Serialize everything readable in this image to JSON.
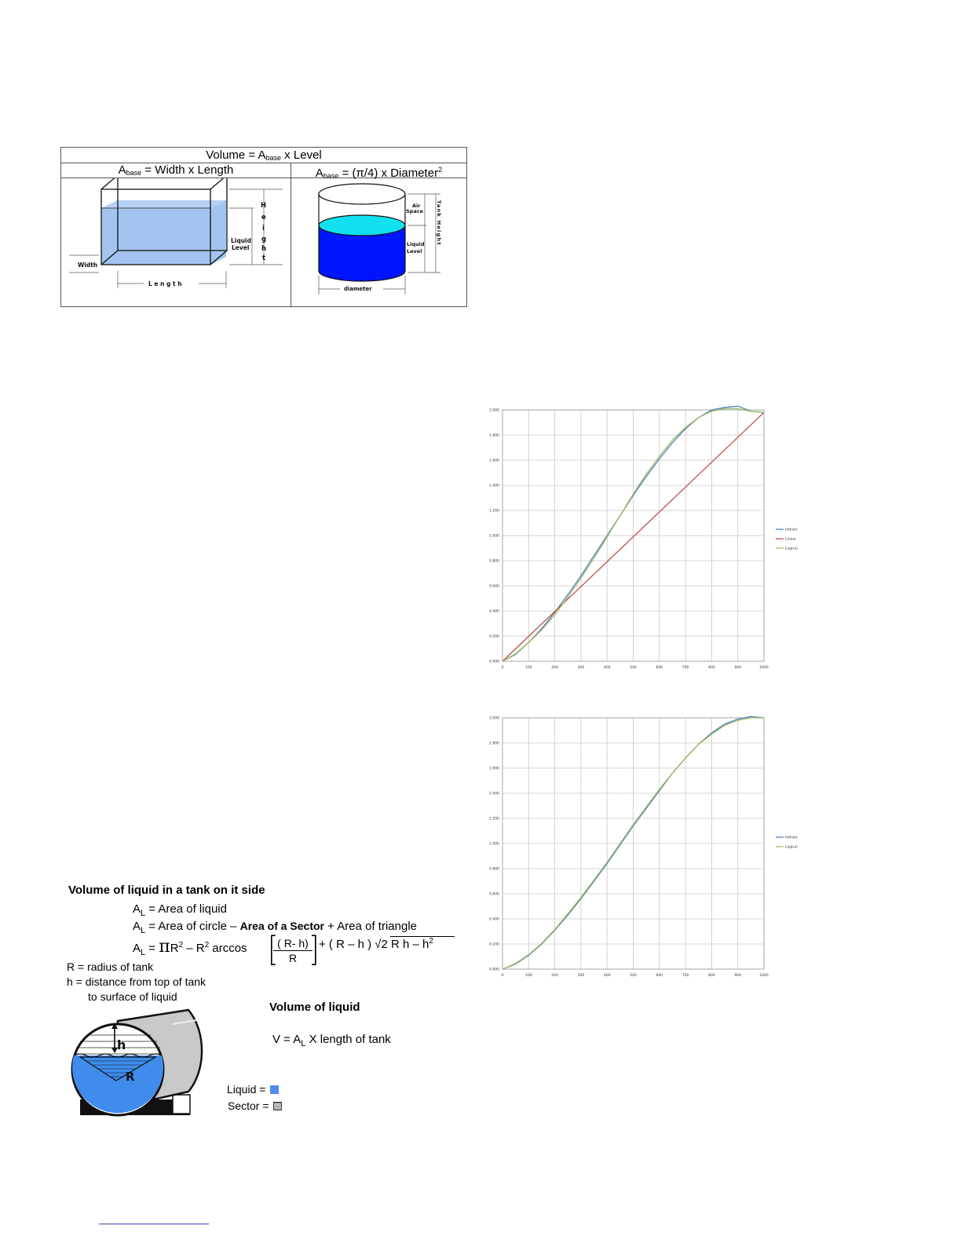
{
  "figure_table": {
    "volume_formula": "Volume = A",
    "volume_sub": "base",
    "volume_tail": " x Level",
    "rect_formula": "A",
    "rect_sub": "base",
    "rect_tail": " = Width x Length",
    "cyl_formula": "A",
    "cyl_sub": "base",
    "cyl_tail": " = (π/4) x Diameter",
    "cyl_sup": "2",
    "rect_labels": {
      "height": "Height",
      "liquid_level": [
        "Liquid",
        "Level"
      ],
      "width": "Width",
      "length": "L e n g t h"
    },
    "cyl_labels": {
      "air_space": [
        "Air",
        "Space"
      ],
      "liquid_level": [
        "Liquid",
        "Level"
      ],
      "tank_height": "Tank Height",
      "diameter": "diameter"
    }
  },
  "chart_data": [
    {
      "type": "line",
      "xlim": [
        0,
        1000
      ],
      "ylim": [
        0,
        2000
      ],
      "x_ticks": [
        "0",
        "100",
        "200",
        "300",
        "400",
        "500",
        "600",
        "700",
        "800",
        "900",
        "1000"
      ],
      "y_ticks": [
        "0.000",
        "0.200",
        "0.400",
        "0.600",
        "0.800",
        "1.000",
        "1.200",
        "1.400",
        "1.600",
        "1.800",
        "2.000"
      ],
      "grid": true,
      "legend_position": "right",
      "series": [
        {
          "name": "Infinite",
          "color": "#4f81bd",
          "x": [
            0,
            50,
            100,
            150,
            200,
            250,
            300,
            350,
            400,
            450,
            500,
            550,
            600,
            650,
            700,
            750,
            800,
            850,
            900,
            950,
            1000
          ],
          "y": [
            0,
            55,
            150,
            260,
            390,
            530,
            680,
            840,
            1000,
            1160,
            1320,
            1470,
            1610,
            1740,
            1850,
            1940,
            2000,
            2020,
            2030,
            1990,
            1980
          ]
        },
        {
          "name": "Linear",
          "color": "#c0504d",
          "x": [
            0,
            1000
          ],
          "y": [
            0,
            1980
          ]
        },
        {
          "name": "Logical",
          "color": "#9bbb59",
          "x": [
            0,
            50,
            100,
            150,
            200,
            250,
            300,
            350,
            400,
            450,
            500,
            550,
            600,
            650,
            700,
            750,
            800,
            850,
            900,
            950,
            1000
          ],
          "y": [
            0,
            60,
            150,
            250,
            370,
            510,
            660,
            820,
            990,
            1160,
            1330,
            1490,
            1630,
            1760,
            1860,
            1940,
            1990,
            2010,
            2010,
            1990,
            1980
          ]
        }
      ]
    },
    {
      "type": "line",
      "xlim": [
        0,
        1000
      ],
      "ylim": [
        0,
        2000
      ],
      "x_ticks": [
        "0",
        "100",
        "200",
        "300",
        "400",
        "500",
        "600",
        "700",
        "800",
        "900",
        "1000"
      ],
      "y_ticks": [
        "0.000",
        "0.200",
        "0.400",
        "0.600",
        "0.800",
        "1.000",
        "1.200",
        "1.400",
        "1.600",
        "1.800",
        "2.000"
      ],
      "grid": true,
      "legend_position": "right",
      "series": [
        {
          "name": "Infinite",
          "color": "#4f81bd",
          "x": [
            0,
            50,
            100,
            150,
            200,
            250,
            300,
            350,
            400,
            450,
            500,
            550,
            600,
            650,
            700,
            750,
            800,
            850,
            900,
            950,
            1000
          ],
          "y": [
            0,
            40,
            110,
            200,
            310,
            430,
            560,
            700,
            840,
            990,
            1140,
            1280,
            1420,
            1560,
            1680,
            1790,
            1880,
            1950,
            1990,
            2010,
            2000
          ]
        },
        {
          "name": "Logical",
          "color": "#9bbb59",
          "x": [
            0,
            50,
            100,
            150,
            200,
            250,
            300,
            350,
            400,
            450,
            500,
            550,
            600,
            650,
            700,
            750,
            800,
            850,
            900,
            950,
            1000
          ],
          "y": [
            0,
            45,
            115,
            205,
            315,
            440,
            570,
            710,
            850,
            1000,
            1150,
            1290,
            1430,
            1560,
            1680,
            1790,
            1870,
            1940,
            1980,
            2000,
            2000
          ]
        }
      ]
    }
  ],
  "formula_block": {
    "heading": "Volume of liquid in a tank on it side",
    "line1_prefix": "A",
    "line1_sub": "L",
    "line1_eq": " =  Area of liquid",
    "line2_prefix": "A",
    "line2_sub": "L",
    "line2_eq": " =  Area of circle –  ",
    "line2_sector": "Area of a Sector",
    "line2_tail": "  + Area of triangle",
    "line3_prefix": "A",
    "line3_sub": "L",
    "line3_eq": " = ",
    "line3_pi": "π",
    "line3_a": "R",
    "line3_a_sup": "2",
    "line3_b": " – R",
    "line3_b_sup": "2",
    "line3_c": " arccos",
    "line3_frac_num": "( R- h)",
    "line3_frac_den": "R",
    "line3_d": "  +  ( R – h ) √2 R h – h",
    "line3_d_sup": "2",
    "def_r": "R = radius of tank",
    "def_h1": "h = distance from top of tank",
    "def_h2": "to surface of liquid",
    "vol_heading": "Volume of liquid",
    "vol_prefix": "V = A",
    "vol_sub": "L",
    "vol_tail": "  X  length of tank",
    "legend_liquid": "Liquid =",
    "legend_sector": "Sector      =",
    "diagram_h": "h",
    "diagram_r": "R"
  }
}
